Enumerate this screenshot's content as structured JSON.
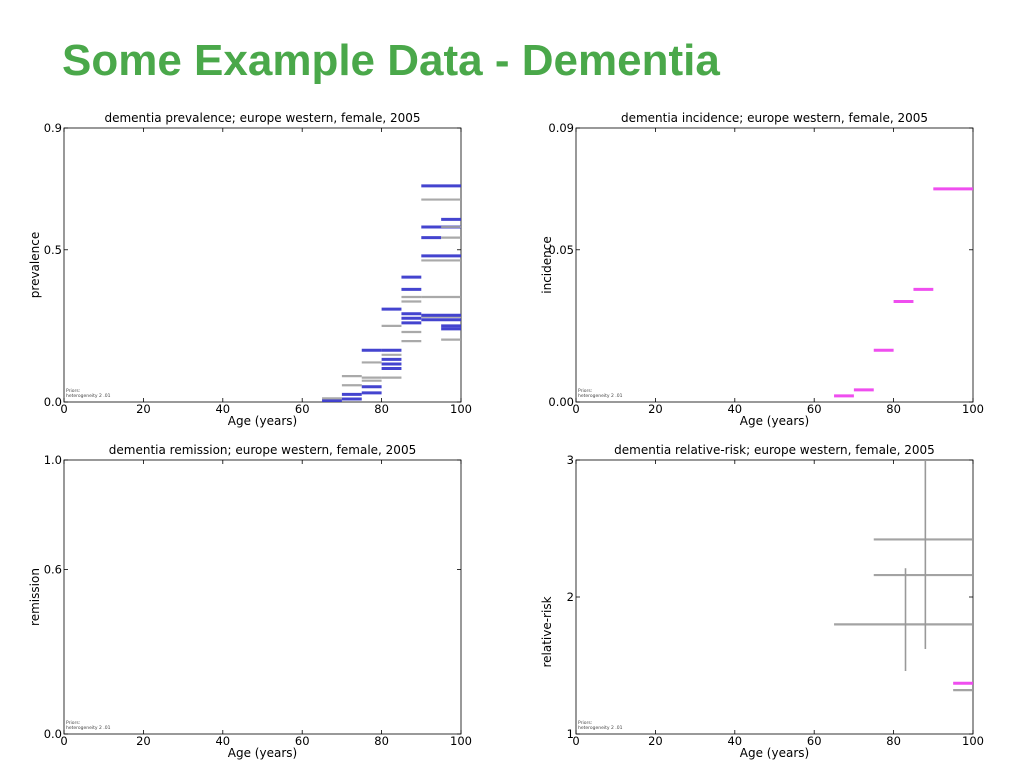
{
  "slide": {
    "title": "Some Example Data - Dementia"
  },
  "chart_data": [
    {
      "type": "errorbar",
      "title": "dementia prevalence; europe western, female, 2005",
      "xlabel": "Age (years)",
      "ylabel": "prevalence",
      "xlim": [
        0,
        100
      ],
      "ylim": [
        0,
        0.9
      ],
      "xticks": [
        "0",
        "20",
        "40",
        "60",
        "80",
        "100"
      ],
      "yticks": [
        {
          "value": 0.0,
          "label": "0.0"
        },
        {
          "value": 0.5,
          "label": "0.5"
        },
        {
          "value": 0.9,
          "label": "0.9"
        }
      ],
      "prior_text": [
        "Priors:",
        "heterogeneity 2 .01"
      ],
      "colors": {
        "blue": "#3a3acc",
        "gray": "#a0a0a0"
      },
      "segments": [
        {
          "x0": 65,
          "x1": 70,
          "y": 0.005,
          "color": "blue"
        },
        {
          "x0": 65,
          "x1": 70,
          "y": 0.012,
          "color": "gray"
        },
        {
          "x0": 70,
          "x1": 75,
          "y": 0.01,
          "color": "blue"
        },
        {
          "x0": 70,
          "x1": 75,
          "y": 0.025,
          "color": "blue"
        },
        {
          "x0": 70,
          "x1": 75,
          "y": 0.055,
          "color": "gray"
        },
        {
          "x0": 70,
          "x1": 75,
          "y": 0.085,
          "color": "gray"
        },
        {
          "x0": 75,
          "x1": 80,
          "y": 0.03,
          "color": "blue"
        },
        {
          "x0": 75,
          "x1": 80,
          "y": 0.05,
          "color": "blue"
        },
        {
          "x0": 75,
          "x1": 80,
          "y": 0.07,
          "color": "gray"
        },
        {
          "x0": 75,
          "x1": 80,
          "y": 0.08,
          "color": "gray"
        },
        {
          "x0": 75,
          "x1": 80,
          "y": 0.13,
          "color": "gray"
        },
        {
          "x0": 75,
          "x1": 80,
          "y": 0.17,
          "color": "blue"
        },
        {
          "x0": 80,
          "x1": 85,
          "y": 0.08,
          "color": "gray"
        },
        {
          "x0": 80,
          "x1": 85,
          "y": 0.11,
          "color": "blue"
        },
        {
          "x0": 80,
          "x1": 85,
          "y": 0.125,
          "color": "blue"
        },
        {
          "x0": 80,
          "x1": 85,
          "y": 0.14,
          "color": "blue"
        },
        {
          "x0": 80,
          "x1": 85,
          "y": 0.155,
          "color": "gray"
        },
        {
          "x0": 80,
          "x1": 85,
          "y": 0.17,
          "color": "blue"
        },
        {
          "x0": 80,
          "x1": 85,
          "y": 0.25,
          "color": "gray"
        },
        {
          "x0": 80,
          "x1": 85,
          "y": 0.305,
          "color": "blue"
        },
        {
          "x0": 85,
          "x1": 90,
          "y": 0.2,
          "color": "gray"
        },
        {
          "x0": 85,
          "x1": 90,
          "y": 0.23,
          "color": "gray"
        },
        {
          "x0": 85,
          "x1": 90,
          "y": 0.26,
          "color": "blue"
        },
        {
          "x0": 85,
          "x1": 90,
          "y": 0.275,
          "color": "blue"
        },
        {
          "x0": 85,
          "x1": 90,
          "y": 0.29,
          "color": "blue"
        },
        {
          "x0": 85,
          "x1": 90,
          "y": 0.33,
          "color": "gray"
        },
        {
          "x0": 85,
          "x1": 90,
          "y": 0.345,
          "color": "gray"
        },
        {
          "x0": 85,
          "x1": 90,
          "y": 0.37,
          "color": "blue"
        },
        {
          "x0": 85,
          "x1": 90,
          "y": 0.41,
          "color": "blue"
        },
        {
          "x0": 90,
          "x1": 100,
          "y": 0.27,
          "color": "blue"
        },
        {
          "x0": 90,
          "x1": 100,
          "y": 0.28,
          "color": "gray"
        },
        {
          "x0": 90,
          "x1": 100,
          "y": 0.285,
          "color": "blue"
        },
        {
          "x0": 90,
          "x1": 100,
          "y": 0.345,
          "color": "gray"
        },
        {
          "x0": 90,
          "x1": 100,
          "y": 0.465,
          "color": "gray"
        },
        {
          "x0": 90,
          "x1": 100,
          "y": 0.48,
          "color": "blue"
        },
        {
          "x0": 90,
          "x1": 95,
          "y": 0.54,
          "color": "blue"
        },
        {
          "x0": 90,
          "x1": 100,
          "y": 0.575,
          "color": "blue"
        },
        {
          "x0": 90,
          "x1": 100,
          "y": 0.665,
          "color": "gray"
        },
        {
          "x0": 90,
          "x1": 100,
          "y": 0.71,
          "color": "blue"
        },
        {
          "x0": 95,
          "x1": 100,
          "y": 0.205,
          "color": "gray"
        },
        {
          "x0": 95,
          "x1": 100,
          "y": 0.24,
          "color": "blue"
        },
        {
          "x0": 95,
          "x1": 100,
          "y": 0.25,
          "color": "blue"
        },
        {
          "x0": 95,
          "x1": 100,
          "y": 0.54,
          "color": "gray"
        },
        {
          "x0": 95,
          "x1": 100,
          "y": 0.575,
          "color": "gray"
        },
        {
          "x0": 95,
          "x1": 100,
          "y": 0.6,
          "color": "blue"
        }
      ]
    },
    {
      "type": "errorbar",
      "title": "dementia incidence; europe western, female, 2005",
      "xlabel": "Age (years)",
      "ylabel": "incidence",
      "xlim": [
        0,
        100
      ],
      "ylim": [
        0,
        0.09
      ],
      "xticks": [
        "0",
        "20",
        "40",
        "60",
        "80",
        "100"
      ],
      "yticks": [
        {
          "value": 0.0,
          "label": "0.00"
        },
        {
          "value": 0.05,
          "label": "0.05"
        },
        {
          "value": 0.09,
          "label": "0.09"
        }
      ],
      "prior_text": [
        "Priors:",
        "heterogeneity 2 .01"
      ],
      "colors": {
        "magenta": "#ee44ee"
      },
      "segments": [
        {
          "x0": 65,
          "x1": 70,
          "y": 0.002,
          "color": "magenta"
        },
        {
          "x0": 70,
          "x1": 75,
          "y": 0.004,
          "color": "magenta"
        },
        {
          "x0": 75,
          "x1": 80,
          "y": 0.017,
          "color": "magenta"
        },
        {
          "x0": 80,
          "x1": 85,
          "y": 0.033,
          "color": "magenta"
        },
        {
          "x0": 85,
          "x1": 90,
          "y": 0.037,
          "color": "magenta"
        },
        {
          "x0": 90,
          "x1": 100,
          "y": 0.07,
          "color": "magenta"
        }
      ]
    },
    {
      "type": "errorbar",
      "title": "dementia remission; europe western, female, 2005",
      "xlabel": "Age (years)",
      "ylabel": "remission",
      "xlim": [
        0,
        100
      ],
      "ylim": [
        0,
        1.0
      ],
      "xticks": [
        "0",
        "20",
        "40",
        "60",
        "80",
        "100"
      ],
      "yticks": [
        {
          "value": 0.0,
          "label": "0.0"
        },
        {
          "value": 0.6,
          "label": "0.6"
        },
        {
          "value": 1.0,
          "label": "1.0"
        }
      ],
      "prior_text": [
        "Priors:",
        "heterogeneity 2 .01"
      ],
      "colors": {},
      "segments": []
    },
    {
      "type": "errorbar",
      "title": "dementia relative-risk; europe western, female, 2005",
      "xlabel": "Age (years)",
      "ylabel": "relative-risk",
      "xlim": [
        0,
        100
      ],
      "ylim": [
        1,
        3
      ],
      "xticks": [
        "0",
        "20",
        "40",
        "60",
        "80",
        "100"
      ],
      "yticks": [
        {
          "value": 1,
          "label": "1"
        },
        {
          "value": 2,
          "label": "2"
        },
        {
          "value": 3,
          "label": "3"
        }
      ],
      "prior_text": [
        "Priors:",
        "heterogeneity 2 .01"
      ],
      "colors": {
        "gray": "#999999",
        "magenta": "#ee44ee"
      },
      "segments": [
        {
          "x0": 75,
          "x1": 100,
          "y": 2.42,
          "color": "gray"
        },
        {
          "x0": 75,
          "x1": 100,
          "y": 2.16,
          "color": "gray"
        },
        {
          "x0": 65,
          "x1": 100,
          "y": 1.8,
          "color": "gray"
        },
        {
          "x0": 95,
          "x1": 100,
          "y": 1.32,
          "color": "gray"
        },
        {
          "x0": 95,
          "x1": 100,
          "y": 1.37,
          "color": "magenta"
        }
      ],
      "vlines": [
        {
          "x": 88,
          "y0": 1.62,
          "y1": 3.0,
          "color": "gray"
        },
        {
          "x": 83,
          "y0": 1.46,
          "y1": 2.21,
          "color": "gray"
        }
      ]
    }
  ]
}
